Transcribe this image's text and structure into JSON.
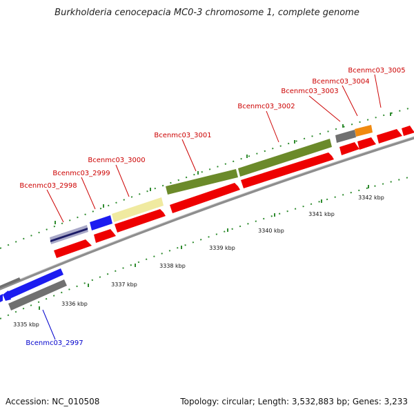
{
  "title": "Burkholderia cenocepacia MC0-3 chromosome 1, complete genome",
  "footer": {
    "accession": "Accession: NC_010508",
    "summary": "Topology: circular; Length: 3,532,883 bp; Genes: 3,233"
  },
  "colors": {
    "backbone": "#8c8c8c",
    "tick_dots": "#2e8b2e",
    "cds": "#ee0000",
    "label_red": "#cc0000",
    "label_blue": "#0000cc"
  },
  "ticks": [
    "3335 kbp",
    "3336 kbp",
    "3337 kbp",
    "3338 kbp",
    "3339 kbp",
    "3340 kbp",
    "3341 kbp",
    "3342 kbp"
  ],
  "gene_labels": [
    {
      "text": "Bcenmc03_2998",
      "color": "red"
    },
    {
      "text": "Bcenmc03_2999",
      "color": "red"
    },
    {
      "text": "Bcenmc03_3000",
      "color": "red"
    },
    {
      "text": "Bcenmc03_3001",
      "color": "red"
    },
    {
      "text": "Bcenmc03_3002",
      "color": "red"
    },
    {
      "text": "Bcenmc03_3003",
      "color": "red"
    },
    {
      "text": "Bcenmc03_3004",
      "color": "red"
    },
    {
      "text": "Bcenmc03_3005",
      "color": "red"
    },
    {
      "text": "Bcenmc03_2997",
      "color": "blue"
    }
  ]
}
